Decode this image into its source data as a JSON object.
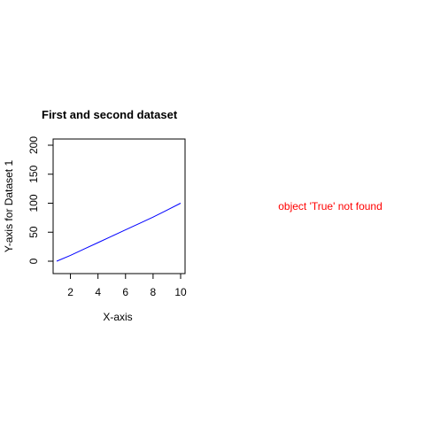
{
  "chart_data": {
    "type": "line",
    "title": "First and second dataset",
    "xlabel": "X-axis",
    "ylabel": "Y-axis for Dataset 1",
    "xlim": [
      1,
      10
    ],
    "ylim": [
      0,
      200
    ],
    "xticks": [
      2,
      4,
      6,
      8,
      10
    ],
    "yticks": [
      0,
      50,
      100,
      150,
      200
    ],
    "grid": false,
    "series": [
      {
        "color": "#0000ff",
        "x": [
          1,
          2,
          3,
          4,
          5,
          6,
          7,
          8,
          9,
          10
        ],
        "y": [
          0,
          10,
          21,
          32,
          43,
          54,
          65,
          76,
          88,
          100
        ]
      }
    ]
  },
  "error_message": "object 'True' not found",
  "error_color": "#ff0000"
}
